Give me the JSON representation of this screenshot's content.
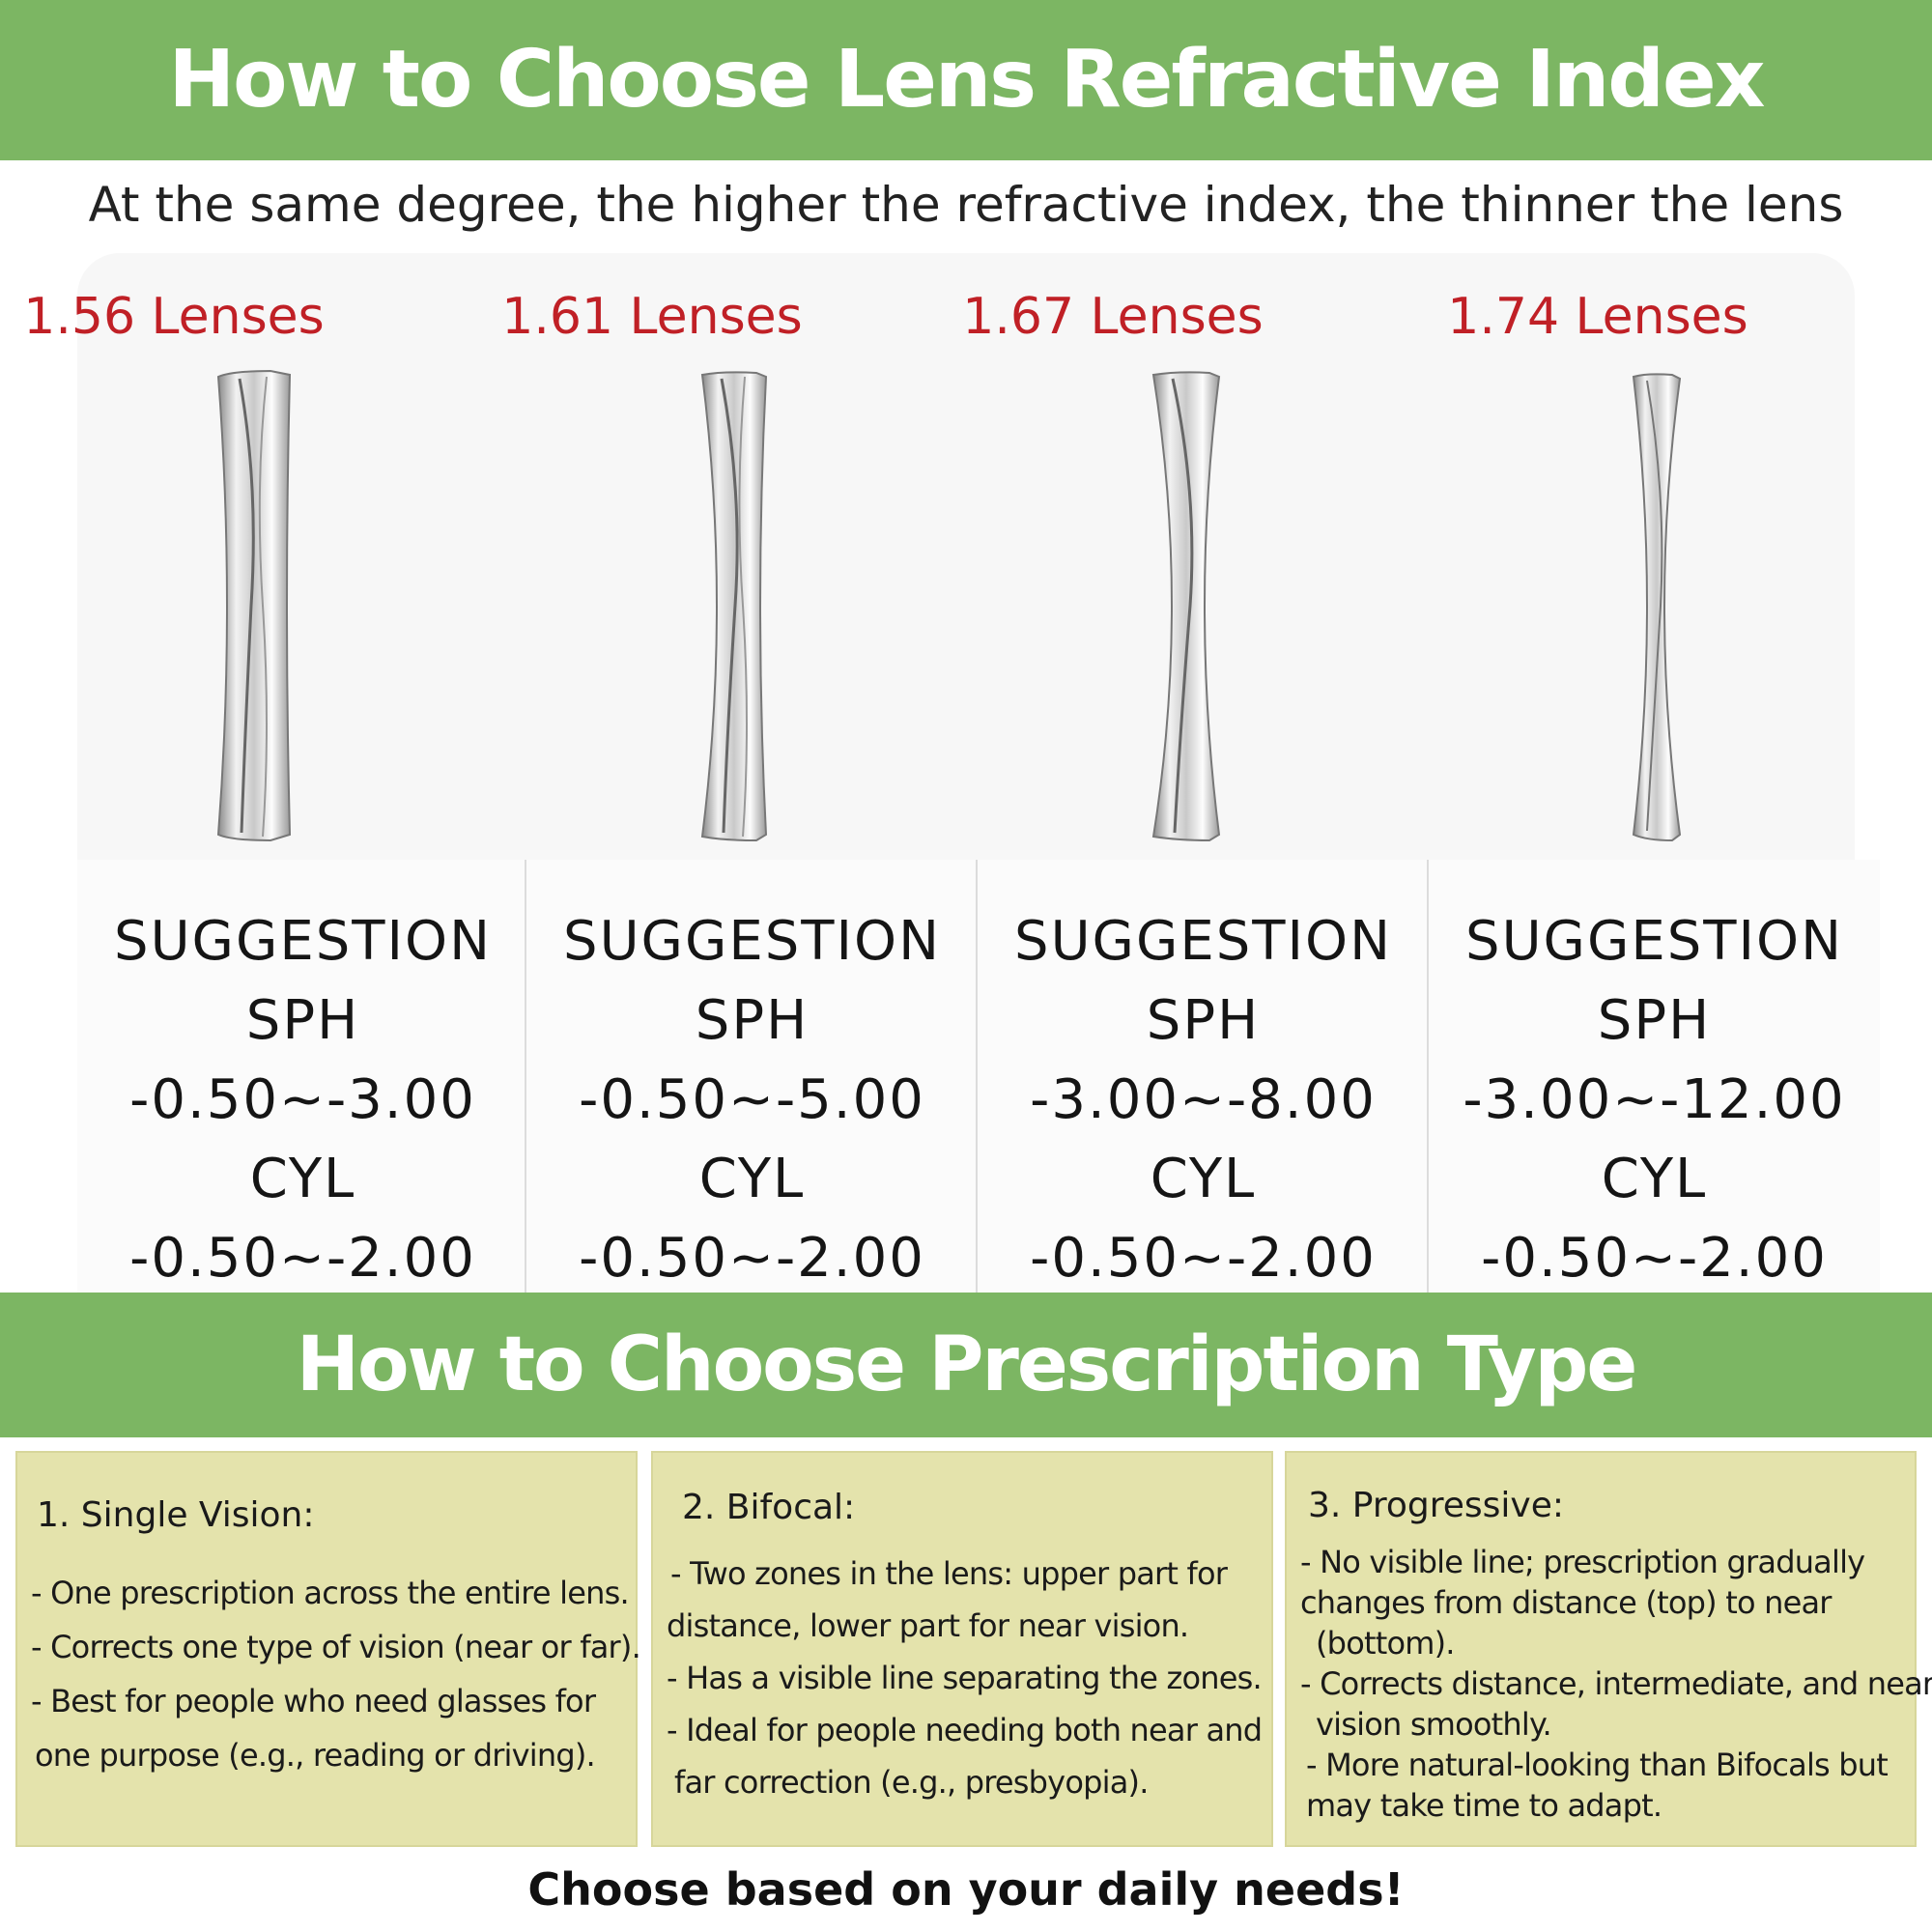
{
  "header": {
    "title": "How to Choose Lens Refractive Index"
  },
  "subtitle": "At the same degree, the higher the refractive index, the thinner the lens",
  "lenses": [
    {
      "title": "1.56 Lenses",
      "suggestion": "SUGGESTION",
      "sph_label": "SPH",
      "sph": "-0.50~-3.00",
      "cyl_label": "CYL",
      "cyl": "-0.50~-2.00"
    },
    {
      "title": "1.61 Lenses",
      "suggestion": "SUGGESTION",
      "sph_label": "SPH",
      "sph": "-0.50~-5.00",
      "cyl_label": "CYL",
      "cyl": "-0.50~-2.00"
    },
    {
      "title": "1.67 Lenses",
      "suggestion": "SUGGESTION",
      "sph_label": "SPH",
      "sph": "-3.00~-8.00",
      "cyl_label": "CYL",
      "cyl": "-0.50~-2.00"
    },
    {
      "title": "1.74 Lenses",
      "suggestion": "SUGGESTION",
      "sph_label": "SPH",
      "sph": "-3.00~-12.00",
      "cyl_label": "CYL",
      "cyl": "-0.50~-2.00"
    }
  ],
  "section2": {
    "title": "How to Choose Prescription Type"
  },
  "types": [
    {
      "title": "1. Single Vision:",
      "lines": [
        "- One prescription across the entire lens.",
        "- Corrects one type of vision (near or far).",
        "- Best for people who need glasses for",
        "one purpose (e.g., reading or driving)."
      ]
    },
    {
      "title": "2. Bifocal:",
      "lines": [
        "- Two zones in the lens: upper part for",
        "distance, lower part for near vision.",
        "- Has a visible line separating the zones.",
        "- Ideal for people needing both near and",
        "far correction (e.g., presbyopia)."
      ]
    },
    {
      "title": "3. Progressive:",
      "lines": [
        "- No visible line; prescription gradually",
        "changes from distance (top) to near",
        "(bottom).",
        "- Corrects distance, intermediate, and near",
        "vision smoothly.",
        "- More natural-looking than Bifocals but",
        "may take time to adapt."
      ]
    }
  ],
  "footer": "Choose based on your daily needs!",
  "colors": {
    "band_green": "#7cb663",
    "lens_title_red": "#c02026",
    "card_bg": "#e4e3ac"
  }
}
